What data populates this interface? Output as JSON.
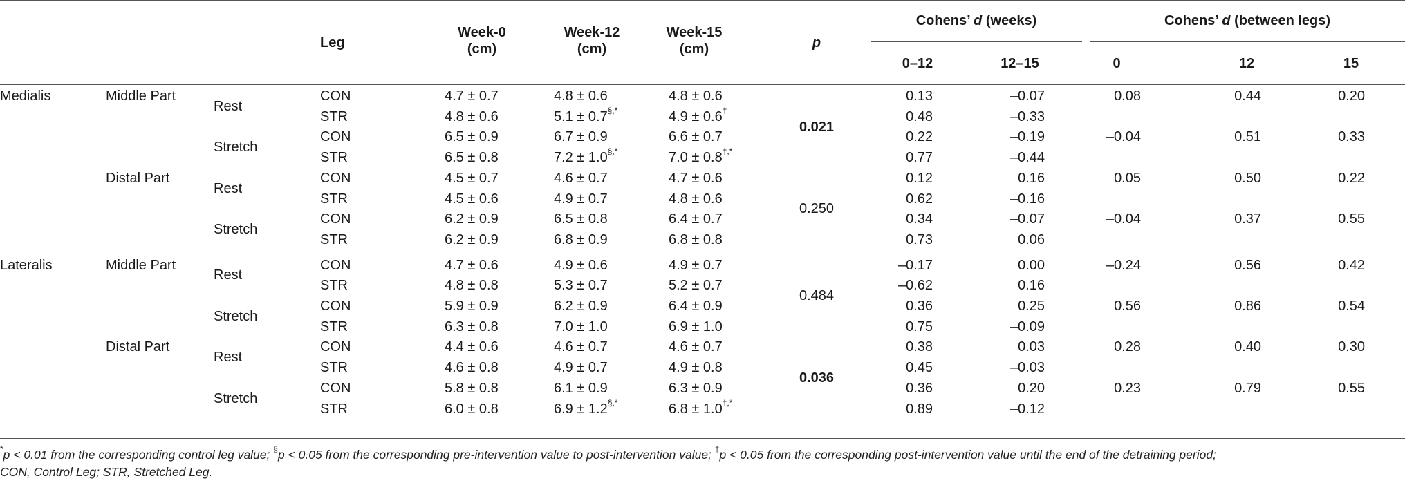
{
  "header": {
    "leg": "Leg",
    "week0": [
      "Week-0",
      "(cm)"
    ],
    "week12": [
      "Week-12",
      "(cm)"
    ],
    "week15": [
      "Week-15",
      "(cm)"
    ],
    "p": "p",
    "cohens_weeks": {
      "prefix": "Cohens’ ",
      "d": "d",
      "suffix": " (weeks)"
    },
    "cohens_between": {
      "prefix": "Cohens’ ",
      "d": "d",
      "suffix": " (between legs)"
    },
    "sub_weeks": [
      "0–12",
      "12–15"
    ],
    "sub_between": [
      "0",
      "12",
      "15"
    ]
  },
  "rows": [
    {
      "muscle": "Medialis",
      "part": "Middle Part",
      "cond": "Rest",
      "leg": "CON",
      "w0": "4.7 ± 0.7",
      "w12": "4.8 ± 0.6",
      "w12sup": "",
      "w15": "4.8 ± 0.6",
      "w15sup": "",
      "d012": "0.13",
      "d1215": "–0.07"
    },
    {
      "muscle": "",
      "part": "",
      "cond": "",
      "leg": "STR",
      "w0": "4.8 ± 0.6",
      "w12": "5.1 ± 0.7",
      "w12sup": "§,*",
      "w15": "4.9 ± 0.6",
      "w15sup": "†",
      "d012": "0.48",
      "d1215": "–0.33"
    },
    {
      "muscle": "",
      "part": "",
      "cond": "Stretch",
      "leg": "CON",
      "w0": "6.5 ± 0.9",
      "w12": "6.7 ± 0.9",
      "w12sup": "",
      "w15": "6.6 ± 0.7",
      "w15sup": "",
      "d012": "0.22",
      "d1215": "–0.19"
    },
    {
      "muscle": "",
      "part": "",
      "cond": "",
      "leg": "STR",
      "w0": "6.5 ± 0.8",
      "w12": "7.2 ± 1.0",
      "w12sup": "§,*",
      "w15": "7.0 ± 0.8",
      "w15sup": "†,*",
      "d012": "0.77",
      "d1215": "–0.44"
    },
    {
      "muscle": "",
      "part": "Distal Part",
      "cond": "Rest",
      "leg": "CON",
      "w0": "4.5 ± 0.7",
      "w12": "4.6 ± 0.7",
      "w12sup": "",
      "w15": "4.7 ± 0.6",
      "w15sup": "",
      "d012": "0.12",
      "d1215": "0.16"
    },
    {
      "muscle": "",
      "part": "",
      "cond": "",
      "leg": "STR",
      "w0": "4.5 ± 0.6",
      "w12": "4.9 ± 0.7",
      "w12sup": "",
      "w15": "4.8 ± 0.6",
      "w15sup": "",
      "d012": "0.62",
      "d1215": "–0.16"
    },
    {
      "muscle": "",
      "part": "",
      "cond": "Stretch",
      "leg": "CON",
      "w0": "6.2 ± 0.9",
      "w12": "6.5 ± 0.8",
      "w12sup": "",
      "w15": "6.4 ± 0.7",
      "w15sup": "",
      "d012": "0.34",
      "d1215": "–0.07"
    },
    {
      "muscle": "",
      "part": "",
      "cond": "",
      "leg": "STR",
      "w0": "6.2 ± 0.9",
      "w12": "6.8 ± 0.9",
      "w12sup": "",
      "w15": "6.8 ± 0.8",
      "w15sup": "",
      "d012": "0.73",
      "d1215": "0.06"
    },
    {
      "muscle": "Lateralis",
      "part": "Middle Part",
      "cond": "Rest",
      "leg": "CON",
      "w0": "4.7 ± 0.6",
      "w12": "4.9 ± 0.6",
      "w12sup": "",
      "w15": "4.9 ± 0.7",
      "w15sup": "",
      "d012": "–0.17",
      "d1215": "0.00"
    },
    {
      "muscle": "",
      "part": "",
      "cond": "",
      "leg": "STR",
      "w0": "4.8 ± 0.8",
      "w12": "5.3 ± 0.7",
      "w12sup": "",
      "w15": "5.2 ± 0.7",
      "w15sup": "",
      "d012": "–0.62",
      "d1215": "0.16"
    },
    {
      "muscle": "",
      "part": "",
      "cond": "Stretch",
      "leg": "CON",
      "w0": "5.9 ± 0.9",
      "w12": "6.2 ± 0.9",
      "w12sup": "",
      "w15": "6.4 ± 0.9",
      "w15sup": "",
      "d012": "0.36",
      "d1215": "0.25"
    },
    {
      "muscle": "",
      "part": "",
      "cond": "",
      "leg": "STR",
      "w0": "6.3 ± 0.8",
      "w12": "7.0 ± 1.0",
      "w12sup": "",
      "w15": "6.9 ± 1.0",
      "w15sup": "",
      "d012": "0.75",
      "d1215": "–0.09"
    },
    {
      "muscle": "",
      "part": "Distal Part",
      "cond": "Rest",
      "leg": "CON",
      "w0": "4.4 ± 0.6",
      "w12": "4.6 ± 0.7",
      "w12sup": "",
      "w15": "4.6 ± 0.7",
      "w15sup": "",
      "d012": "0.38",
      "d1215": "0.03"
    },
    {
      "muscle": "",
      "part": "",
      "cond": "",
      "leg": "STR",
      "w0": "4.6 ± 0.8",
      "w12": "4.9 ± 0.7",
      "w12sup": "",
      "w15": "4.9 ± 0.8",
      "w15sup": "",
      "d012": "0.45",
      "d1215": "–0.03"
    },
    {
      "muscle": "",
      "part": "",
      "cond": "Stretch",
      "leg": "CON",
      "w0": "5.8 ± 0.8",
      "w12": "6.1 ± 0.9",
      "w12sup": "",
      "w15": "6.3 ± 0.9",
      "w15sup": "",
      "d012": "0.36",
      "d1215": "0.20"
    },
    {
      "muscle": "",
      "part": "",
      "cond": "",
      "leg": "STR",
      "w0": "6.0 ± 0.8",
      "w12": "6.9 ± 1.2",
      "w12sup": "§,*",
      "w15": "6.8 ± 1.0",
      "w15sup": "†,*",
      "d012": "0.89",
      "d1215": "–0.12"
    }
  ],
  "between": [
    {
      "d0": "0.08",
      "d12": "0.44",
      "d15": "0.20"
    },
    {
      "d0": "–0.04",
      "d12": "0.51",
      "d15": "0.33"
    },
    {
      "d0": "0.05",
      "d12": "0.50",
      "d15": "0.22"
    },
    {
      "d0": "–0.04",
      "d12": "0.37",
      "d15": "0.55"
    },
    {
      "d0": "–0.24",
      "d12": "0.56",
      "d15": "0.42"
    },
    {
      "d0": "0.56",
      "d12": "0.86",
      "d15": "0.54"
    },
    {
      "d0": "0.28",
      "d12": "0.40",
      "d15": "0.30"
    },
    {
      "d0": "0.23",
      "d12": "0.79",
      "d15": "0.55"
    }
  ],
  "pvalues": [
    {
      "value": "0.021",
      "significant": true
    },
    {
      "value": "0.250",
      "significant": false
    },
    {
      "value": "0.484",
      "significant": false
    },
    {
      "value": "0.036",
      "significant": true
    }
  ],
  "footnote": {
    "line1": [
      {
        "t": "*",
        "sup": true
      },
      {
        "t": "p < 0.01 from the corresponding control leg value; "
      },
      {
        "t": "§",
        "sup": true
      },
      {
        "t": "p < 0.05 from the corresponding pre-intervention value to post-intervention value; "
      },
      {
        "t": "†",
        "sup": true
      },
      {
        "t": "p < 0.05 from the corresponding post-intervention value until the end of the detraining period;"
      }
    ],
    "line2": "CON, Control Leg; STR, Stretched Leg."
  }
}
